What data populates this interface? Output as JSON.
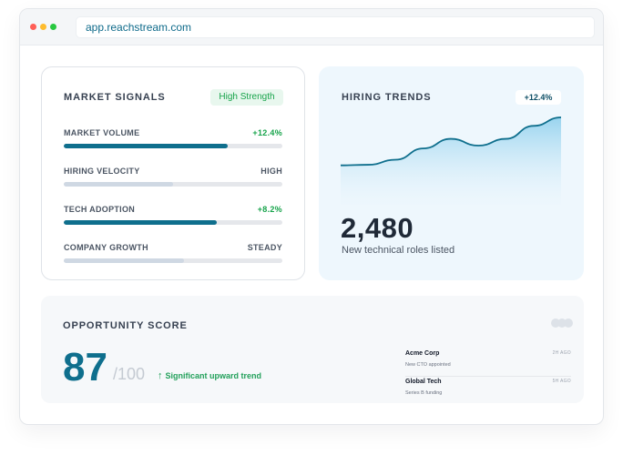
{
  "browser": {
    "url": "app.reachstream.com"
  },
  "market_signals": {
    "title": "MARKET SIGNALS",
    "badge": "High Strength",
    "metrics": [
      {
        "label": "MARKET VOLUME",
        "value": "+12.4%",
        "fill": 0.75,
        "style": "teal",
        "value_color": "green"
      },
      {
        "label": "HIRING VELOCITY",
        "value": "HIGH",
        "fill": 0.5,
        "style": "pale",
        "value_color": "gray"
      },
      {
        "label": "TECH ADOPTION",
        "value": "+8.2%",
        "fill": 0.7,
        "style": "teal",
        "value_color": "green"
      },
      {
        "label": "COMPANY GROWTH",
        "value": "STEADY",
        "fill": 0.55,
        "style": "pale",
        "value_color": "gray"
      }
    ]
  },
  "hiring_trends": {
    "title": "HIRING TRENDS",
    "badge": "+12.4%",
    "value": "2,480",
    "caption": "New technical roles listed",
    "trend_points": [
      0.15,
      0.16,
      0.25,
      0.45,
      0.62,
      0.5,
      0.62,
      0.85,
      1.0
    ],
    "line_color": "#0f6f8d"
  },
  "opportunity": {
    "title": "OPPORTUNITY SCORE",
    "score": "87",
    "denominator": "/100",
    "trend_text": "Significant upward trend",
    "feed": [
      {
        "company": "Acme Corp",
        "detail": "New CTO appointed",
        "time": "2H AGO"
      },
      {
        "company": "Global Tech",
        "detail": "Series B funding",
        "time": "5H AGO"
      }
    ]
  },
  "colors": {
    "accent": "#0f6f8d",
    "positive": "#16a34a"
  }
}
